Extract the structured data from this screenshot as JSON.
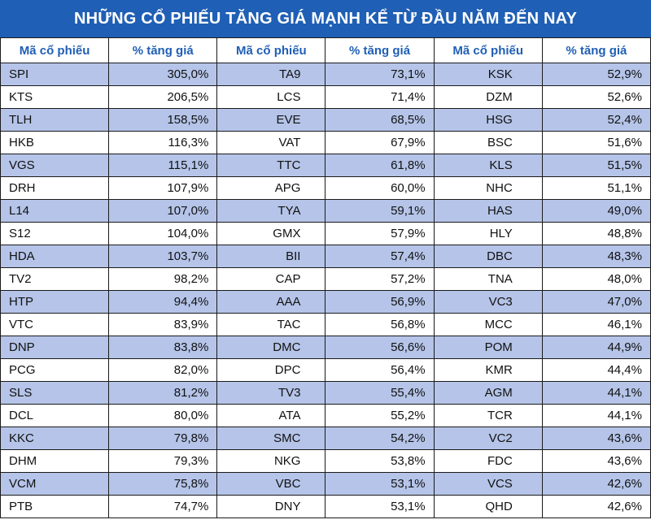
{
  "chart_data": {
    "type": "table",
    "title": "NHỮNG CỔ PHIẾU TĂNG GIÁ MẠNH KỂ TỪ ĐẦU NĂM ĐẾN NAY",
    "headers": [
      "Mã cổ phiếu",
      "% tăng giá",
      "Mã cổ phiếu",
      "% tăng giá",
      "Mã cổ phiếu",
      "% tăng giá"
    ],
    "rows": [
      [
        "SPI",
        "305,0%",
        "TA9",
        "73,1%",
        "KSK",
        "52,9%"
      ],
      [
        "KTS",
        "206,5%",
        "LCS",
        "71,4%",
        "DZM",
        "52,6%"
      ],
      [
        "TLH",
        "158,5%",
        "EVE",
        "68,5%",
        "HSG",
        "52,4%"
      ],
      [
        "HKB",
        "116,3%",
        "VAT",
        "67,9%",
        "BSC",
        "51,6%"
      ],
      [
        "VGS",
        "115,1%",
        "TTC",
        "61,8%",
        "KLS",
        "51,5%"
      ],
      [
        "DRH",
        "107,9%",
        "APG",
        "60,0%",
        "NHC",
        "51,1%"
      ],
      [
        "L14",
        "107,0%",
        "TYA",
        "59,1%",
        "HAS",
        "49,0%"
      ],
      [
        "S12",
        "104,0%",
        "GMX",
        "57,9%",
        "HLY",
        "48,8%"
      ],
      [
        "HDA",
        "103,7%",
        "BII",
        "57,4%",
        "DBC",
        "48,3%"
      ],
      [
        "TV2",
        "98,2%",
        "CAP",
        "57,2%",
        "TNA",
        "48,0%"
      ],
      [
        "HTP",
        "94,4%",
        "AAA",
        "56,9%",
        "VC3",
        "47,0%"
      ],
      [
        "VTC",
        "83,9%",
        "TAC",
        "56,8%",
        "MCC",
        "46,1%"
      ],
      [
        "DNP",
        "83,8%",
        "DMC",
        "56,6%",
        "POM",
        "44,9%"
      ],
      [
        "PCG",
        "82,0%",
        "DPC",
        "56,4%",
        "KMR",
        "44,4%"
      ],
      [
        "SLS",
        "81,2%",
        "TV3",
        "55,4%",
        "AGM",
        "44,1%"
      ],
      [
        "DCL",
        "80,0%",
        "ATA",
        "55,2%",
        "TCR",
        "44,1%"
      ],
      [
        "KKC",
        "79,8%",
        "SMC",
        "54,2%",
        "VC2",
        "43,6%"
      ],
      [
        "DHM",
        "79,3%",
        "NKG",
        "53,8%",
        "FDC",
        "43,6%"
      ],
      [
        "VCM",
        "75,8%",
        "VBC",
        "53,1%",
        "VCS",
        "42,6%"
      ],
      [
        "PTB",
        "74,7%",
        "DNY",
        "53,1%",
        "QHD",
        "42,6%"
      ]
    ]
  },
  "colors": {
    "title_bg": "#1f5fb5",
    "header_text": "#1f5fb5",
    "row_alt_bg": "#b5c4e8"
  }
}
